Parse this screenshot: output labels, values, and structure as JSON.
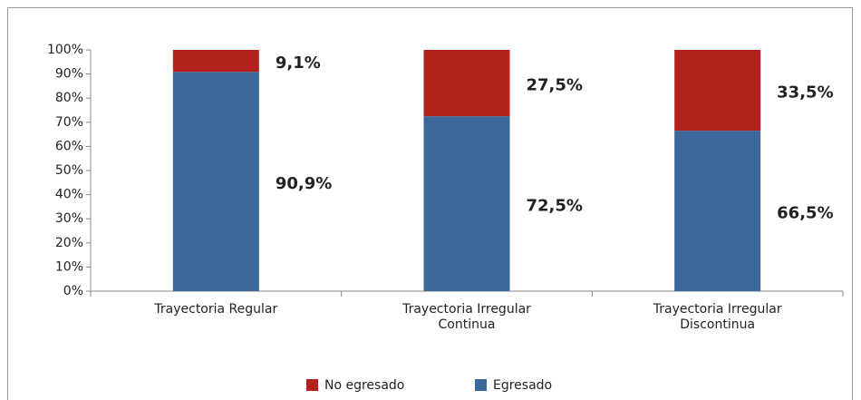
{
  "chart_data": {
    "type": "stacked_bar",
    "categories": [
      "Trayectoria Regular",
      "Trayectoria Irregular Continua",
      "Trayectoria Irregular Discontinua"
    ],
    "series": [
      {
        "name": "Egresado",
        "color": "#3b6899",
        "values": [
          90.9,
          72.5,
          66.5
        ],
        "value_labels": [
          "90,9%",
          "72,5%",
          "66,5%"
        ]
      },
      {
        "name": "No egresado",
        "color": "#b3211d",
        "values": [
          9.1,
          27.5,
          33.5
        ],
        "value_labels": [
          "9,1%",
          "27,5%",
          "33,5%"
        ]
      }
    ],
    "ylim": [
      0,
      100
    ],
    "yticks": [
      {
        "value": 0,
        "label": "0%"
      },
      {
        "value": 10,
        "label": "10%"
      },
      {
        "value": 20,
        "label": "20%"
      },
      {
        "value": 30,
        "label": "30%"
      },
      {
        "value": 40,
        "label": "40%"
      },
      {
        "value": 50,
        "label": "50%"
      },
      {
        "value": 60,
        "label": "60%"
      },
      {
        "value": 70,
        "label": "70%"
      },
      {
        "value": 80,
        "label": "80%"
      },
      {
        "value": 90,
        "label": "90%"
      },
      {
        "value": 100,
        "label": "100%"
      }
    ],
    "legend": "bottom"
  }
}
